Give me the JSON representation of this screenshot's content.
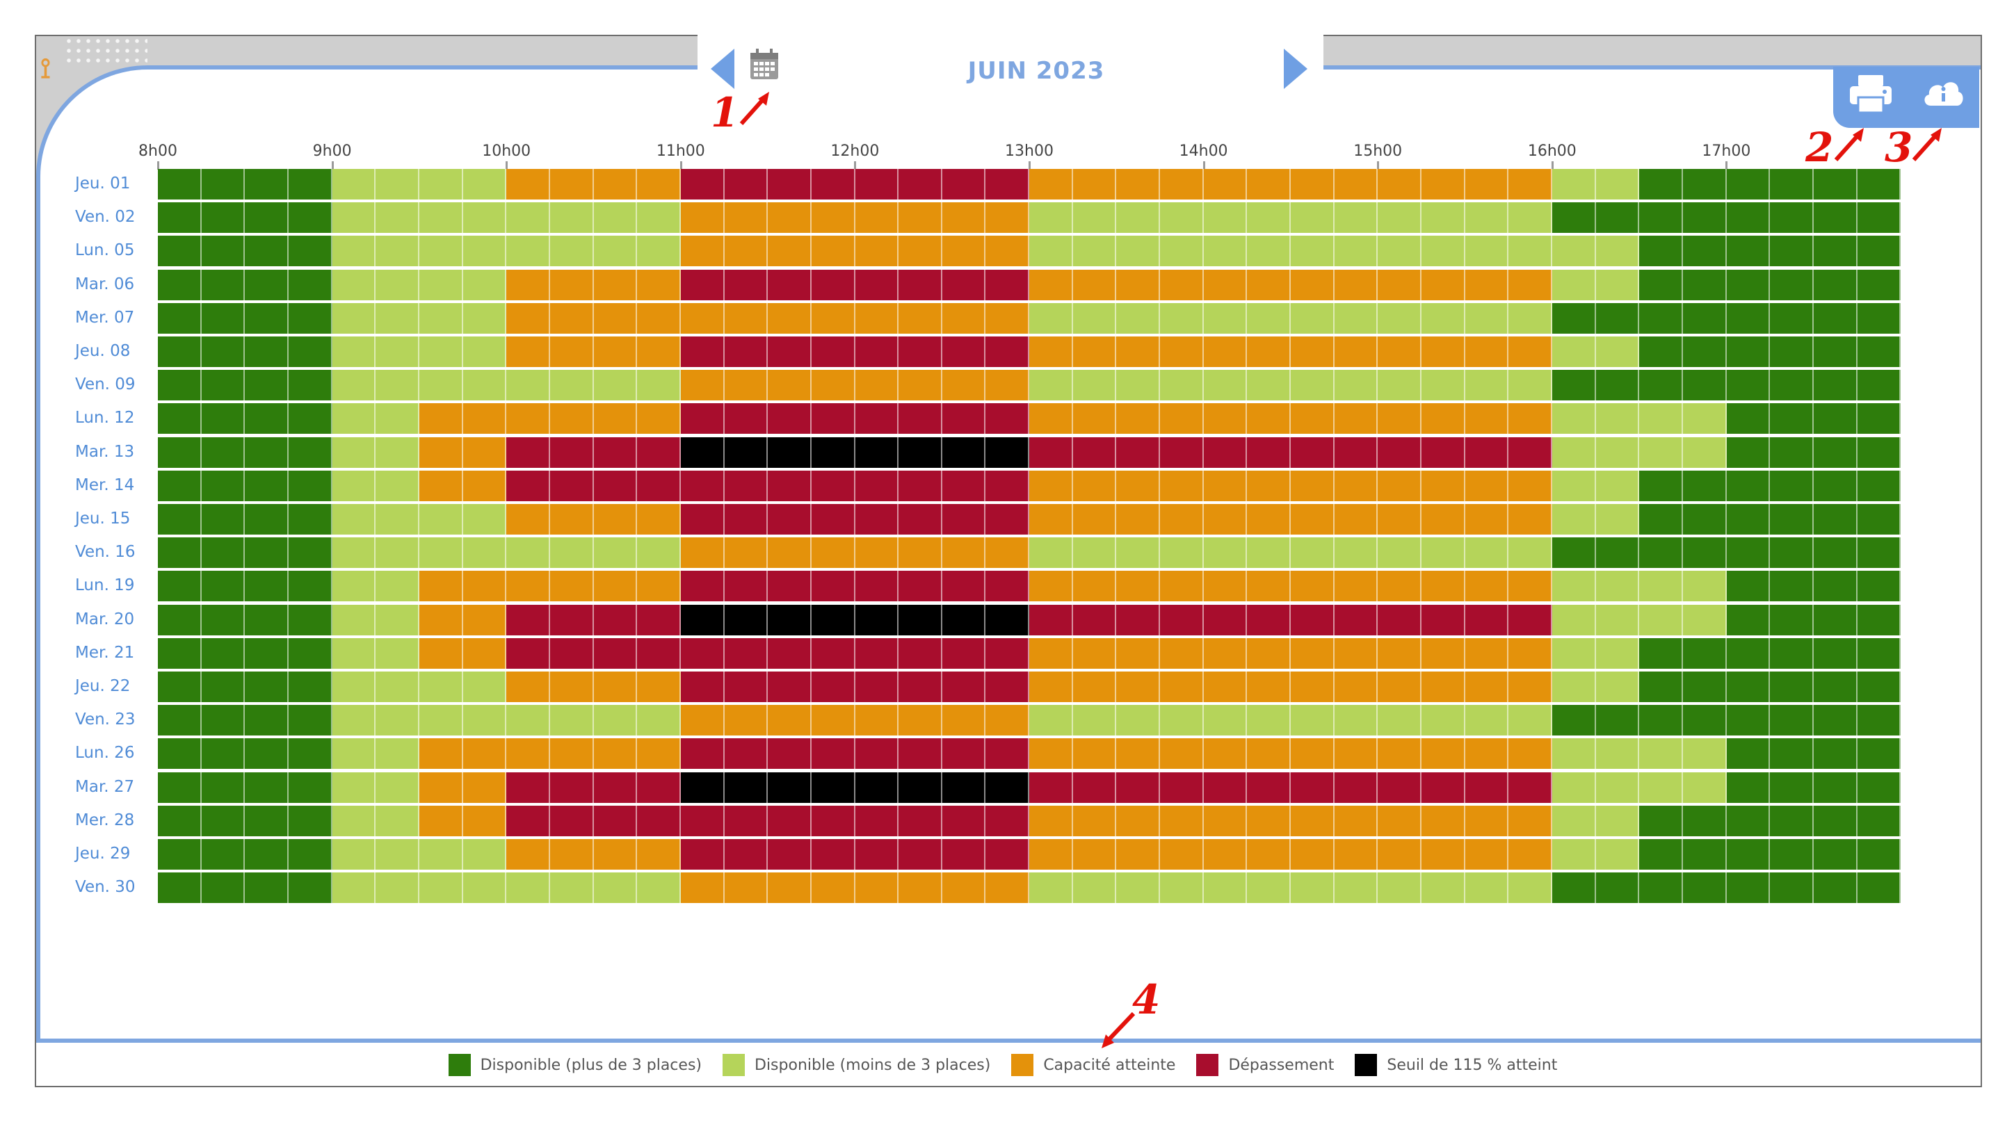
{
  "header": {
    "month": "JUIN 2023"
  },
  "icons": {
    "prev": "chevron-left-icon",
    "next": "chevron-right-icon",
    "calendar": "calendar-icon",
    "print": "printer-icon",
    "cloud": "cloud-info-icon"
  },
  "hours": [
    "8h00",
    "9h00",
    "10h00",
    "11h00",
    "12h00",
    "13h00",
    "14h00",
    "15h00",
    "16h00",
    "17h00"
  ],
  "colors": {
    "G": "#2e7d0c",
    "L": "#b5d45a",
    "O": "#e4920b",
    "R": "#a80d2d",
    "B": "#000000"
  },
  "days": [
    {
      "label": "Jeu. 01",
      "pattern": "GGGGLLLLOOOORRRRRRRROOOOOOOOOOOOLLGGGGGG"
    },
    {
      "label": "Ven. 02",
      "pattern": "GGGGLLLLLLLLOOOOOOOOLLLLLLLLLLLLGGGGGGGG"
    },
    {
      "label": "Lun. 05",
      "pattern": "GGGGLLLLLLLLOOOOOOOOLLLLLLLLLLLLLLGGGGGG"
    },
    {
      "label": "Mar. 06",
      "pattern": "GGGGLLLLOOOORRRRRRRROOOOOOOOOOOOLLGGGGGG"
    },
    {
      "label": "Mer. 07",
      "pattern": "GGGGLLLLOOOOOOOOOOOOLLLLLLLLLLLLGGGGGGGG"
    },
    {
      "label": "Jeu. 08",
      "pattern": "GGGGLLLLOOOORRRRRRRROOOOOOOOOOOOLLGGGGGG"
    },
    {
      "label": "Ven. 09",
      "pattern": "GGGGLLLLLLLLOOOOOOOOLLLLLLLLLLLLGGGGGGGG"
    },
    {
      "label": "Lun. 12",
      "pattern": "GGGGLLOOOOOORRRRRRRROOOOOOOOOOOOLLLLGGGG"
    },
    {
      "label": "Mar. 13",
      "pattern": "GGGGLLOORRRRBBBBBBBBRRRRRRRRRRRRLLLLGGGG"
    },
    {
      "label": "Mer. 14",
      "pattern": "GGGGLLOORRRRRRRRRRRROOOOOOOOOOOOLLGGGGGG"
    },
    {
      "label": "Jeu. 15",
      "pattern": "GGGGLLLLOOOORRRRRRRROOOOOOOOOOOOLLGGGGGG"
    },
    {
      "label": "Ven. 16",
      "pattern": "GGGGLLLLLLLLOOOOOOOOLLLLLLLLLLLLGGGGGGGG"
    },
    {
      "label": "Lun. 19",
      "pattern": "GGGGLLOOOOOORRRRRRRROOOOOOOOOOOOLLLLGGGG"
    },
    {
      "label": "Mar. 20",
      "pattern": "GGGGLLOORRRRBBBBBBBBRRRRRRRRRRRRLLLLGGGG"
    },
    {
      "label": "Mer. 21",
      "pattern": "GGGGLLOORRRRRRRRRRRROOOOOOOOOOOOLLGGGGGG"
    },
    {
      "label": "Jeu. 22",
      "pattern": "GGGGLLLLOOOORRRRRRRROOOOOOOOOOOOLLGGGGGG"
    },
    {
      "label": "Ven. 23",
      "pattern": "GGGGLLLLLLLLOOOOOOOOLLLLLLLLLLLLGGGGGGGG"
    },
    {
      "label": "Lun. 26",
      "pattern": "GGGGLLOOOOOORRRRRRRROOOOOOOOOOOOLLLLGGGG"
    },
    {
      "label": "Mar. 27",
      "pattern": "GGGGLLOORRRRBBBBBBBBRRRRRRRRRRRRLLLLGGGG"
    },
    {
      "label": "Mer. 28",
      "pattern": "GGGGLLOORRRRRRRRRRRROOOOOOOOOOOOLLGGGGGG"
    },
    {
      "label": "Jeu. 29",
      "pattern": "GGGGLLLLOOOORRRRRRRROOOOOOOOOOOOLLGGGGGG"
    },
    {
      "label": "Ven. 30",
      "pattern": "GGGGLLLLLLLLOOOOOOOOLLLLLLLLLLLLGGGGGGGG"
    }
  ],
  "legend": [
    {
      "key": "G",
      "label": "Disponible (plus de 3 places)"
    },
    {
      "key": "L",
      "label": "Disponible (moins de 3 places)"
    },
    {
      "key": "O",
      "label": "Capacité atteinte"
    },
    {
      "key": "R",
      "label": "Dépassement"
    },
    {
      "key": "B",
      "label": "Seuil de 115 % atteint"
    }
  ],
  "annotations": [
    "1",
    "2",
    "3",
    "4"
  ]
}
